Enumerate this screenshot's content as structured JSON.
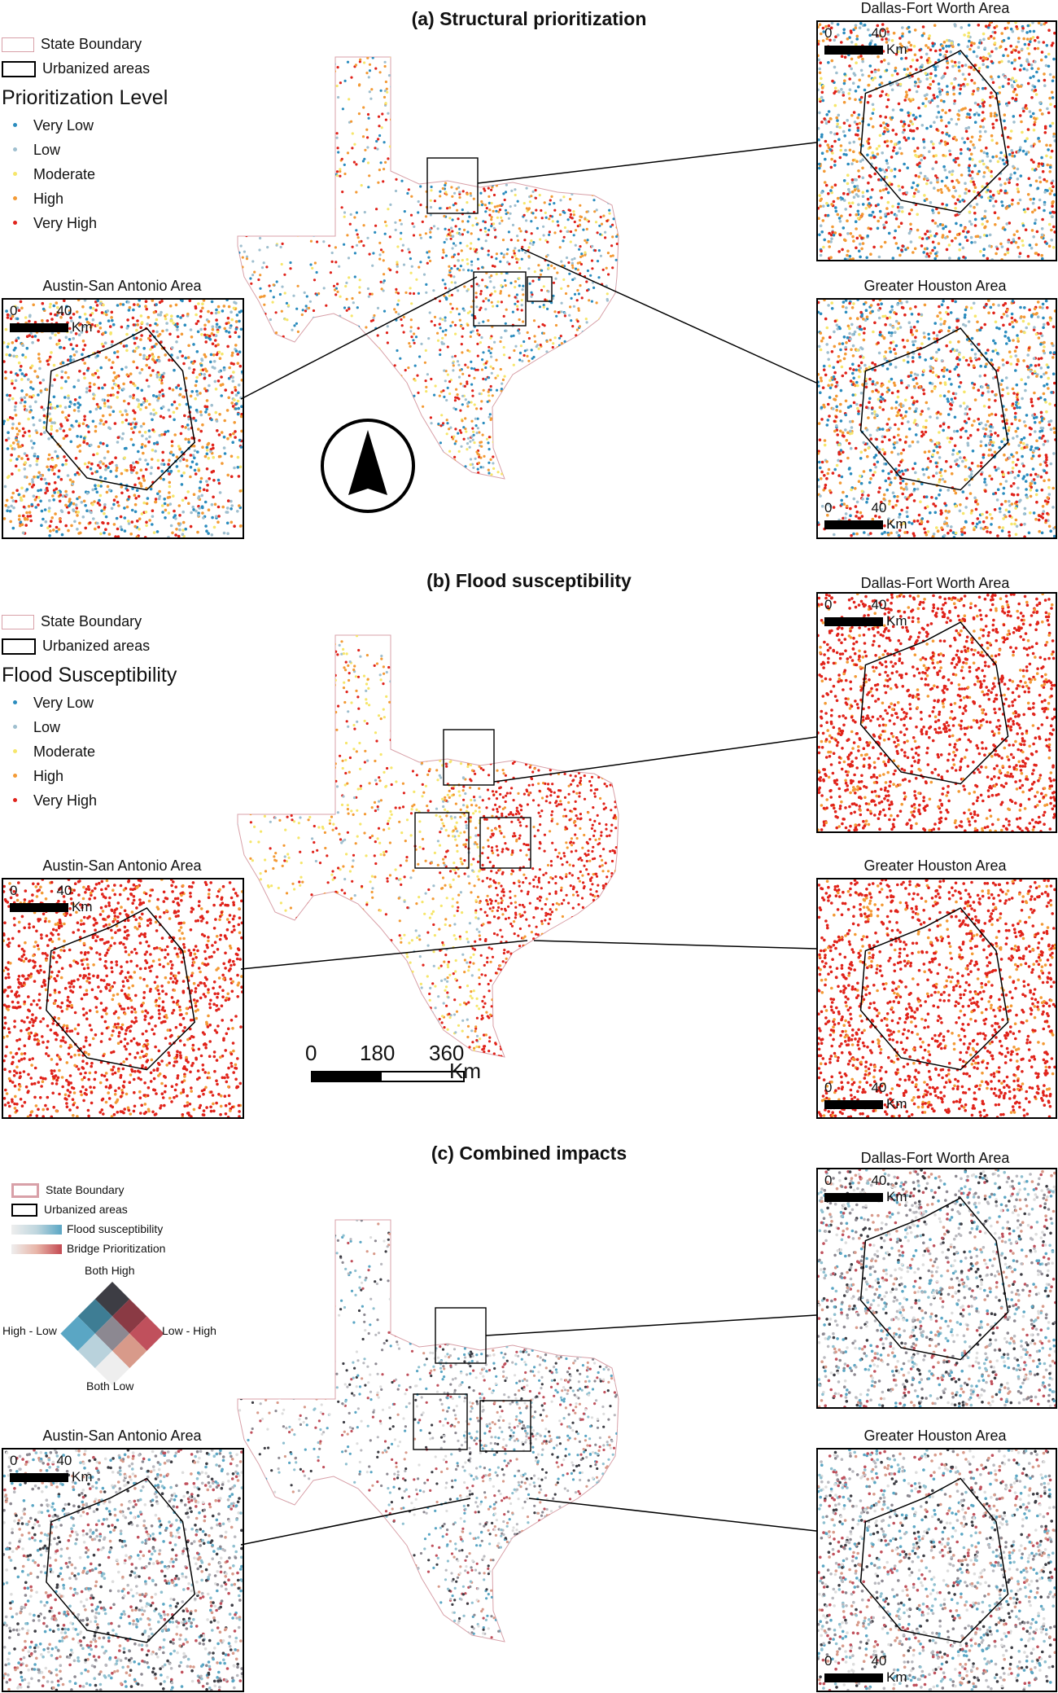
{
  "panels": [
    {
      "id": "a",
      "title": "(a) Structural prioritization",
      "legend": {
        "boundary": "State Boundary",
        "urban": "Urbanized areas",
        "heading": "Prioritization Level",
        "levels": [
          "Very Low",
          "Low",
          "Moderate",
          "High",
          "Very High"
        ]
      },
      "insets": {
        "dfw": "Dallas-Fort Worth Area",
        "austin": "Austin-San Antonio Area",
        "houston": "Greater Houston Area"
      }
    },
    {
      "id": "b",
      "title": "(b) Flood susceptibility",
      "legend": {
        "boundary": "State Boundary",
        "urban": "Urbanized areas",
        "heading": "Flood Susceptibility",
        "levels": [
          "Very Low",
          "Low",
          "Moderate",
          "High",
          "Very High"
        ]
      },
      "insets": {
        "dfw": "Dallas-Fort Worth Area",
        "austin": "Austin-San Antonio Area",
        "houston": "Greater Houston Area"
      }
    },
    {
      "id": "c",
      "title": "(c) Combined impacts",
      "legend": {
        "boundary": "State Boundary",
        "urban": "Urbanized areas",
        "flood": "Flood susceptibility",
        "bridge": "Bridge Prioritization",
        "both_high": "Both High",
        "high_low": "High - Low",
        "low_high": "Low - High",
        "both_low": "Both Low"
      },
      "insets": {
        "dfw": "Dallas-Fort Worth Area",
        "austin": "Austin-San Antonio Area",
        "houston": "Greater Houston Area"
      }
    }
  ],
  "scale": {
    "zero": "0",
    "mid": "180",
    "max": "360",
    "unit": "Km"
  },
  "inset_scale": {
    "zero": "0",
    "value": "40",
    "unit": "Km"
  },
  "colors": {
    "very_low": "#2b8cbe",
    "low": "#9fbfcf",
    "moderate": "#f6e66b",
    "high": "#f39a35",
    "very_high": "#e0231b",
    "boundary": "#d8a0a8",
    "flood_blue": "#5aa6c4",
    "bridge_red": "#c44a52"
  }
}
